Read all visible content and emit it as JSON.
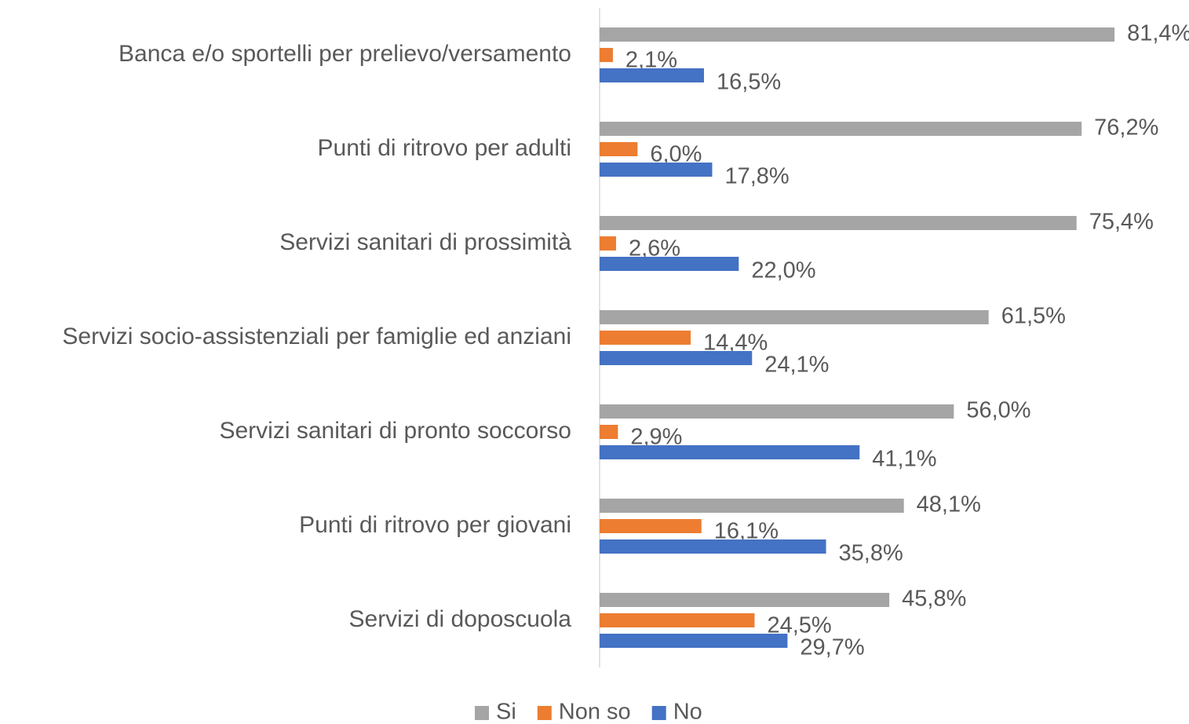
{
  "chart_data": {
    "type": "bar",
    "orientation": "horizontal",
    "categories": [
      "Banca e/o sportelli per prelievo/versamento",
      "Punti di ritrovo per adulti",
      "Servizi sanitari di prossimità",
      "Servizi socio-assistenziali per famiglie ed anziani",
      "Servizi sanitari di pronto soccorso",
      "Punti di ritrovo per giovani",
      "Servizi di doposcuola"
    ],
    "series": [
      {
        "name": "Si",
        "color": "#a5a5a5",
        "values": [
          81.4,
          76.2,
          75.4,
          61.5,
          56.0,
          48.1,
          45.8
        ],
        "value_labels": [
          "81,4%",
          "76,2%",
          "75,4%",
          "61,5%",
          "56,0%",
          "48,1%",
          "45,8%"
        ]
      },
      {
        "name": "Non so",
        "color": "#ed7d31",
        "values": [
          2.1,
          6.0,
          2.6,
          14.4,
          2.9,
          16.1,
          24.5
        ],
        "value_labels": [
          "2,1%",
          "6,0%",
          "2,6%",
          "14,4%",
          "2,9%",
          "16,1%",
          "24,5%"
        ]
      },
      {
        "name": "No",
        "color": "#4472c4",
        "values": [
          16.5,
          17.8,
          22.0,
          24.1,
          41.1,
          35.8,
          29.7
        ],
        "value_labels": [
          "16,5%",
          "17,8%",
          "22,0%",
          "24,1%",
          "41,1%",
          "35,8%",
          "29,7%"
        ]
      }
    ],
    "xlim": [
      0,
      100
    ],
    "legend": "bottom"
  }
}
